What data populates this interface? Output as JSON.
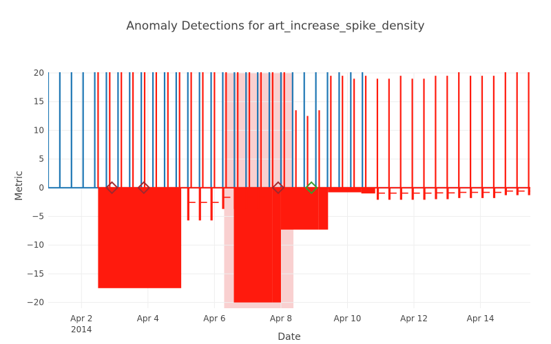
{
  "chart_data": {
    "type": "line",
    "title": "Anomaly Detections for art_increase_spike_density",
    "xlabel": "Date",
    "ylabel": "Metric",
    "xlim": [
      "2014-04-01T00:00",
      "2014-04-15T12:00"
    ],
    "ylim": [
      -21,
      20
    ],
    "y_ticks": [
      -20,
      -15,
      -10,
      -5,
      0,
      5,
      10,
      15,
      20
    ],
    "x_ticks": [
      {
        "date": "2014-04-02",
        "label": "Apr 2",
        "sublabel": "2014"
      },
      {
        "date": "2014-04-04",
        "label": "Apr 4"
      },
      {
        "date": "2014-04-06",
        "label": "Apr 6"
      },
      {
        "date": "2014-04-08",
        "label": "Apr 8"
      },
      {
        "date": "2014-04-10",
        "label": "Apr 10"
      },
      {
        "date": "2014-04-12",
        "label": "Apr 12"
      },
      {
        "date": "2014-04-14",
        "label": "Apr 14"
      }
    ],
    "grid": true,
    "legend": "none",
    "colors": {
      "metric": "#1f77b4",
      "residual": "#ff1a0d",
      "anomaly_marker": "#a0282e",
      "detected_marker": "#3c9a2c",
      "highlight": "#f4a9aa"
    },
    "series": [
      {
        "role": "metric",
        "baseline": 0,
        "spike_period_hours": 8.4,
        "spikes": [
          {
            "date": "2014-04-01T00:00",
            "value": 20
          },
          {
            "date": "2014-04-01T08:24",
            "value": 20
          },
          {
            "date": "2014-04-01T16:48",
            "value": 20
          },
          {
            "date": "2014-04-02T01:12",
            "value": 20
          },
          {
            "date": "2014-04-02T09:36",
            "value": 20
          },
          {
            "date": "2014-04-02T18:00",
            "value": 20
          },
          {
            "date": "2014-04-03T02:24",
            "value": 20
          },
          {
            "date": "2014-04-03T10:48",
            "value": 20
          },
          {
            "date": "2014-04-03T19:12",
            "value": 20
          },
          {
            "date": "2014-04-04T03:36",
            "value": 20
          },
          {
            "date": "2014-04-04T12:00",
            "value": 20
          },
          {
            "date": "2014-04-04T20:24",
            "value": 20
          },
          {
            "date": "2014-04-05T04:48",
            "value": 20
          },
          {
            "date": "2014-04-05T13:12",
            "value": 20
          },
          {
            "date": "2014-04-05T21:36",
            "value": 20
          },
          {
            "date": "2014-04-06T06:00",
            "value": 20
          },
          {
            "date": "2014-04-06T14:24",
            "value": 20
          },
          {
            "date": "2014-04-06T22:48",
            "value": 20
          },
          {
            "date": "2014-04-07T07:12",
            "value": 20
          },
          {
            "date": "2014-04-07T15:36",
            "value": 20
          },
          {
            "date": "2014-04-08T00:00",
            "value": 20
          },
          {
            "date": "2014-04-08T08:24",
            "value": 20
          },
          {
            "date": "2014-04-08T16:48",
            "value": 20
          },
          {
            "date": "2014-04-09T01:12",
            "value": 20
          },
          {
            "date": "2014-04-09T09:36",
            "value": 20
          },
          {
            "date": "2014-04-09T18:00",
            "value": 20
          },
          {
            "date": "2014-04-10T02:24",
            "value": 20
          },
          {
            "date": "2014-04-10T10:48",
            "value": 20
          }
        ]
      },
      {
        "role": "residual",
        "spikes": [
          {
            "date": "2014-04-02T12:00",
            "value": 20
          },
          {
            "date": "2014-04-02T20:24",
            "value": 20
          },
          {
            "date": "2014-04-03T04:48",
            "value": 20
          },
          {
            "date": "2014-04-03T13:12",
            "value": 20
          },
          {
            "date": "2014-04-03T21:36",
            "value": 20
          },
          {
            "date": "2014-04-04T06:00",
            "value": 20
          },
          {
            "date": "2014-04-04T14:24",
            "value": 20
          },
          {
            "date": "2014-04-04T22:48",
            "value": 20
          },
          {
            "date": "2014-04-05T07:12",
            "value": 20
          },
          {
            "date": "2014-04-05T15:36",
            "value": 20
          },
          {
            "date": "2014-04-06T00:00",
            "value": 20
          },
          {
            "date": "2014-04-06T08:24",
            "value": 20
          },
          {
            "date": "2014-04-06T16:48",
            "value": 20
          },
          {
            "date": "2014-04-07T01:12",
            "value": 20
          },
          {
            "date": "2014-04-07T09:36",
            "value": 20
          },
          {
            "date": "2014-04-07T18:00",
            "value": 20
          },
          {
            "date": "2014-04-08T02:24",
            "value": 20
          },
          {
            "date": "2014-04-08T10:48",
            "value": 13.5
          },
          {
            "date": "2014-04-08T19:12",
            "value": 12.5
          },
          {
            "date": "2014-04-09T03:36",
            "value": 13.5
          },
          {
            "date": "2014-04-09T12:00",
            "value": 19.5
          },
          {
            "date": "2014-04-09T20:24",
            "value": 19.5
          },
          {
            "date": "2014-04-10T04:48",
            "value": 19
          },
          {
            "date": "2014-04-10T13:12",
            "value": 19.5
          },
          {
            "date": "2014-04-10T21:36",
            "value": 19
          },
          {
            "date": "2014-04-11T06:00",
            "value": 19
          },
          {
            "date": "2014-04-11T14:24",
            "value": 19.5
          },
          {
            "date": "2014-04-11T22:48",
            "value": 19
          },
          {
            "date": "2014-04-12T07:12",
            "value": 19
          },
          {
            "date": "2014-04-12T15:36",
            "value": 19.5
          },
          {
            "date": "2014-04-13T00:00",
            "value": 19.5
          },
          {
            "date": "2014-04-13T08:24",
            "value": 20
          },
          {
            "date": "2014-04-13T16:48",
            "value": 19.5
          },
          {
            "date": "2014-04-14T01:12",
            "value": 19.5
          },
          {
            "date": "2014-04-14T09:36",
            "value": 19.5
          },
          {
            "date": "2014-04-14T18:00",
            "value": 20
          },
          {
            "date": "2014-04-15T02:24",
            "value": 20
          },
          {
            "date": "2014-04-15T10:48",
            "value": 20
          }
        ],
        "negative_blocks": [
          {
            "start": "2014-04-02T12:00",
            "end": "2014-04-04T15:00",
            "value": -17.5
          },
          {
            "start": "2014-04-04T15:00",
            "end": "2014-04-05T00:00",
            "value": -17.5
          },
          {
            "start": "2014-04-06T14:00",
            "end": "2014-04-07T18:00",
            "value": -20
          },
          {
            "start": "2014-04-07T18:00",
            "end": "2014-04-08T00:00",
            "value": -20
          },
          {
            "start": "2014-04-08T00:00",
            "end": "2014-04-09T03:00",
            "value": -7.3
          },
          {
            "start": "2014-04-09T03:00",
            "end": "2014-04-09T10:00",
            "value": -7.3
          },
          {
            "start": "2014-04-09T10:00",
            "end": "2014-04-10T10:00",
            "value": -0.8
          },
          {
            "start": "2014-04-10T10:00",
            "end": "2014-04-10T20:00",
            "value": -1.0
          }
        ],
        "dips": [
          {
            "date": "2014-04-05T04:48",
            "value": -5.7
          },
          {
            "date": "2014-04-05T13:12",
            "value": -5.7
          },
          {
            "date": "2014-04-05T21:36",
            "value": -5.7
          },
          {
            "date": "2014-04-06T06:00",
            "value": -3.7
          },
          {
            "date": "2014-04-06T14:24",
            "value": -3.7
          },
          {
            "date": "2014-04-06T22:48",
            "value": -3.7
          },
          {
            "date": "2014-04-07T07:12",
            "value": -3.7
          },
          {
            "date": "2014-04-10T21:36",
            "value": -2.1
          },
          {
            "date": "2014-04-11T06:00",
            "value": -2.1
          },
          {
            "date": "2014-04-11T14:24",
            "value": -2.1
          },
          {
            "date": "2014-04-11T22:48",
            "value": -2.1
          },
          {
            "date": "2014-04-12T07:12",
            "value": -2.1
          },
          {
            "date": "2014-04-12T15:36",
            "value": -2.0
          },
          {
            "date": "2014-04-13T00:00",
            "value": -2.0
          },
          {
            "date": "2014-04-13T08:24",
            "value": -1.8
          },
          {
            "date": "2014-04-13T16:48",
            "value": -1.8
          },
          {
            "date": "2014-04-14T01:12",
            "value": -1.8
          },
          {
            "date": "2014-04-14T09:36",
            "value": -1.8
          },
          {
            "date": "2014-04-14T18:00",
            "value": -1.3
          },
          {
            "date": "2014-04-15T02:24",
            "value": -1.3
          },
          {
            "date": "2014-04-15T10:48",
            "value": -1.3
          }
        ]
      }
    ],
    "highlight_region": {
      "start": "2014-04-06T07:00",
      "end": "2014-04-08T09:00"
    },
    "anomaly_markers": [
      {
        "date": "2014-04-02T22:00",
        "value": 0,
        "kind": "true_anomaly"
      },
      {
        "date": "2014-04-03T21:00",
        "value": 0,
        "kind": "true_anomaly"
      },
      {
        "date": "2014-04-07T22:00",
        "value": 0,
        "kind": "true_anomaly"
      },
      {
        "date": "2014-04-08T22:00",
        "value": 0,
        "kind": "detected"
      }
    ]
  }
}
